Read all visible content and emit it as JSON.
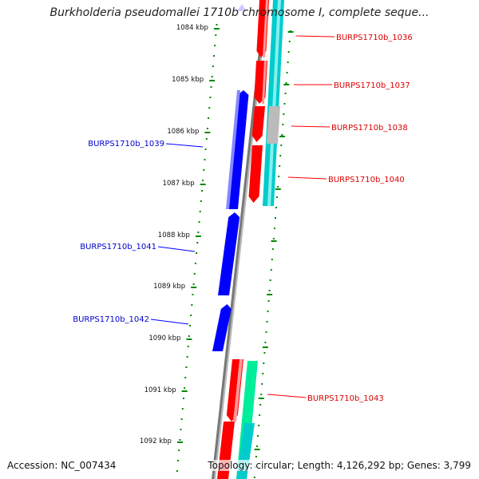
{
  "title": "Burkholderia pseudomallei 1710b chromosome I, complete seque...",
  "footer": {
    "accession": "Accession: NC_007434",
    "topology": "Topology: circular; Length: 4,126,292 bp; Genes: 3,799"
  },
  "ruler": {
    "unit": "kbp",
    "ticks": [
      {
        "label": "1084 kbp"
      },
      {
        "label": "1085 kbp"
      },
      {
        "label": "1086 kbp"
      },
      {
        "label": "1087 kbp"
      },
      {
        "label": "1088 kbp"
      },
      {
        "label": "1089 kbp"
      },
      {
        "label": "1090 kbp"
      },
      {
        "label": "1091 kbp"
      },
      {
        "label": "1092 kbp"
      }
    ]
  },
  "colors": {
    "forward_cds": "#ff0000",
    "reverse_cds": "#0000ff",
    "feature_cyan": "#00cccc",
    "feature_grey": "#bbbbbb",
    "feature_green": "#00ee99",
    "backbone": "#777777",
    "tick_green": "#008800"
  },
  "genes": {
    "forward": [
      {
        "label": "BURPS1710b_1036"
      },
      {
        "label": "BURPS1710b_1037"
      },
      {
        "label": "BURPS1710b_1038"
      },
      {
        "label": "BURPS1710b_1040"
      },
      {
        "label": "BURPS1710b_1043"
      }
    ],
    "reverse": [
      {
        "label": "BURPS1710b_1039"
      },
      {
        "label": "BURPS1710b_1041"
      },
      {
        "label": "BURPS1710b_1042"
      }
    ]
  }
}
